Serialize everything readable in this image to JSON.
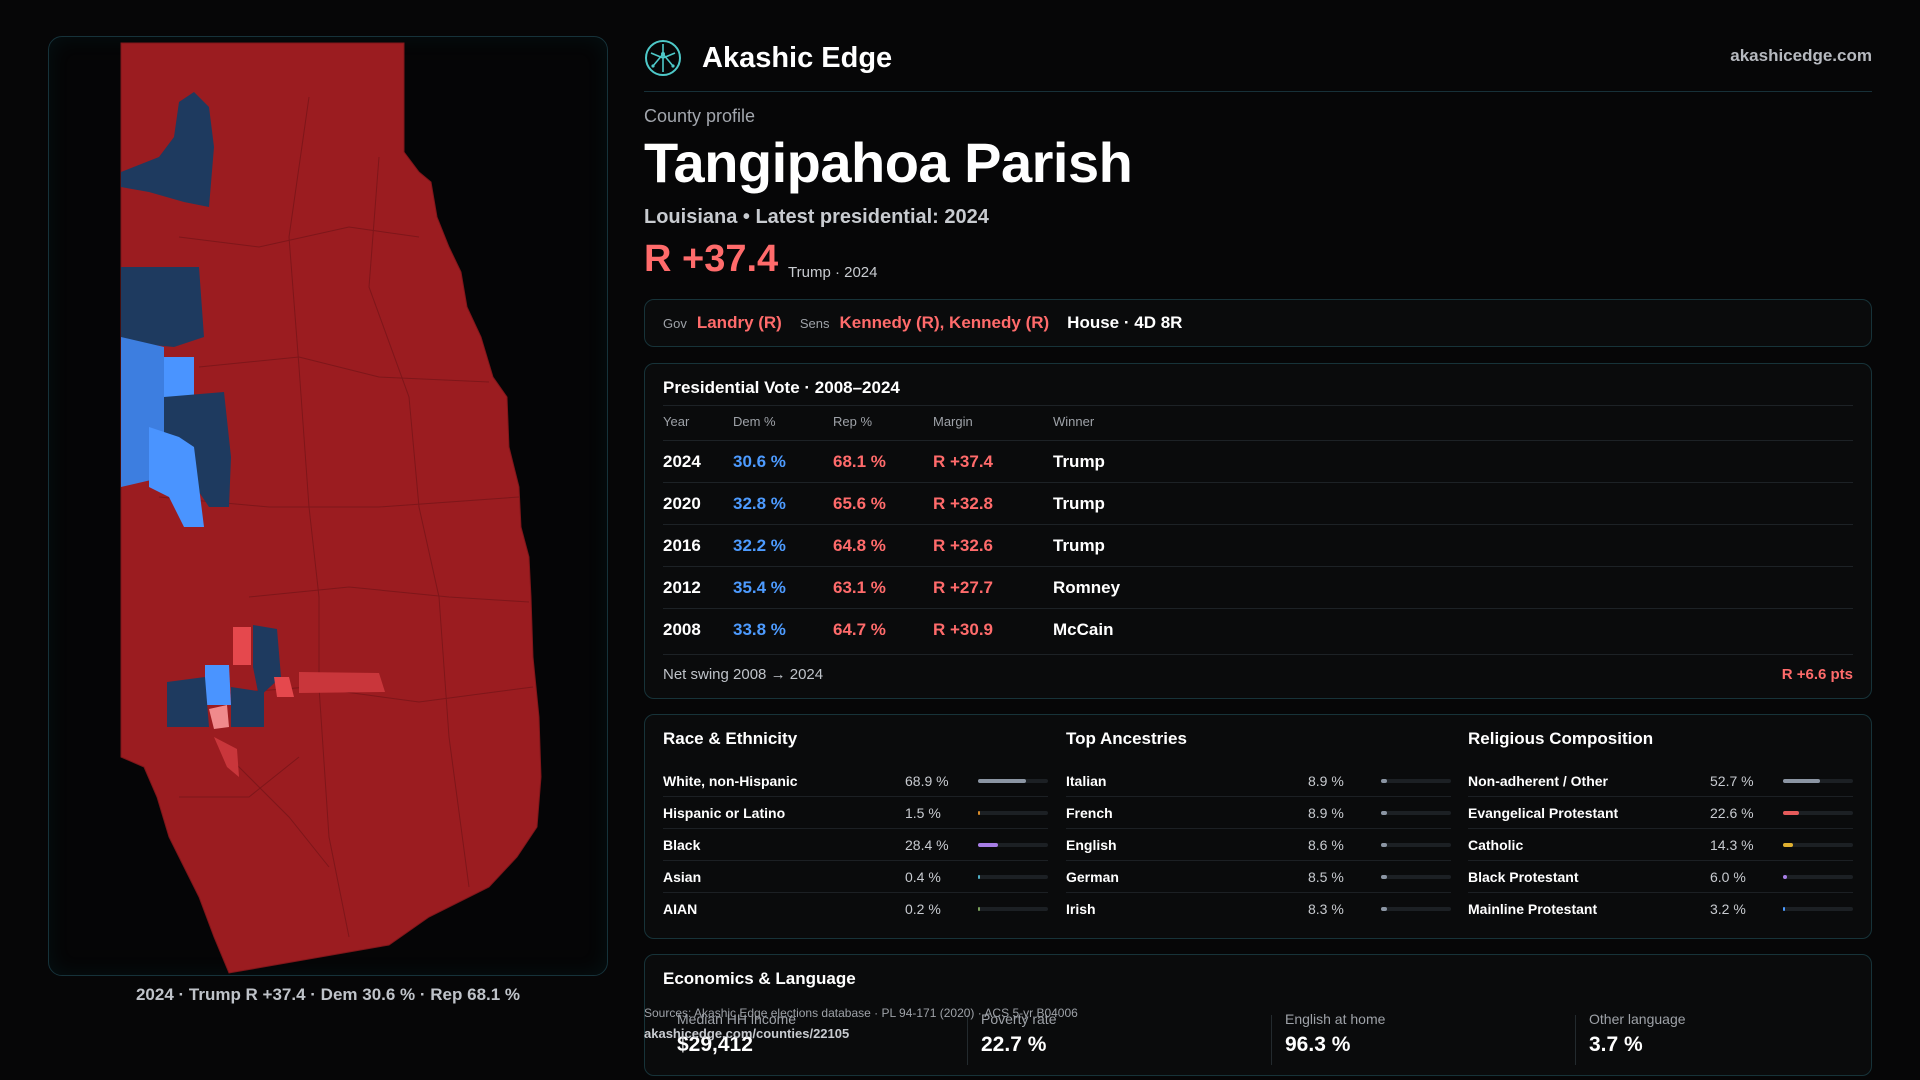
{
  "brand": {
    "name": "Akashic Edge",
    "url": "akashicedge.com",
    "logo_icon": "constellation-logo-icon",
    "accent": "#4ec9c9"
  },
  "profile": {
    "eyebrow": "County profile",
    "title": "Tangipahoa Parish",
    "subtitle": "Louisiana • Latest presidential: 2024",
    "margin": "R +37.4",
    "margin_note": "Trump · 2024"
  },
  "officials": {
    "gov_label": "Gov",
    "gov_value": "Landry (R)",
    "sens_label": "Sens",
    "sens_value": "Kennedy (R), Kennedy (R)",
    "house": "House · 4D 8R"
  },
  "pres": {
    "title": "Presidential Vote · 2008–2024",
    "headers": [
      "Year",
      "Dem %",
      "Rep %",
      "Margin",
      "Winner"
    ],
    "rows": [
      {
        "year": "2024",
        "dem": "30.6 %",
        "rep": "68.1 %",
        "margin": "R +37.4",
        "winner": "Trump"
      },
      {
        "year": "2020",
        "dem": "32.8 %",
        "rep": "65.6 %",
        "margin": "R +32.8",
        "winner": "Trump"
      },
      {
        "year": "2016",
        "dem": "32.2 %",
        "rep": "64.8 %",
        "margin": "R +32.6",
        "winner": "Trump"
      },
      {
        "year": "2012",
        "dem": "35.4 %",
        "rep": "63.1 %",
        "margin": "R +27.7",
        "winner": "Romney"
      },
      {
        "year": "2008",
        "dem": "33.8 %",
        "rep": "64.7 %",
        "margin": "R +30.9",
        "winner": "McCain"
      }
    ],
    "net_swing_label": "Net swing 2008 → 2024",
    "net_swing_value": "R +6.6 pts"
  },
  "demographics": [
    {
      "title": "Race & Ethnicity",
      "items": [
        {
          "label": "White, non-Hispanic",
          "value": "68.9 %",
          "pct": 68.9,
          "color": "#8b95a3"
        },
        {
          "label": "Hispanic or Latino",
          "value": "1.5 %",
          "pct": 1.5,
          "color": "#d98c2a"
        },
        {
          "label": "Black",
          "value": "28.4 %",
          "pct": 28.4,
          "color": "#a77ee6"
        },
        {
          "label": "Asian",
          "value": "0.4 %",
          "pct": 0.4,
          "color": "#4fb0c6"
        },
        {
          "label": "AIAN",
          "value": "0.2 %",
          "pct": 0.2,
          "color": "#7aa05a"
        }
      ]
    },
    {
      "title": "Top Ancestries",
      "items": [
        {
          "label": "Italian",
          "value": "8.9 %",
          "pct": 8.9,
          "color": "#8b95a3"
        },
        {
          "label": "French",
          "value": "8.9 %",
          "pct": 8.9,
          "color": "#8b95a3"
        },
        {
          "label": "English",
          "value": "8.6 %",
          "pct": 8.6,
          "color": "#8b95a3"
        },
        {
          "label": "German",
          "value": "8.5 %",
          "pct": 8.5,
          "color": "#8b95a3"
        },
        {
          "label": "Irish",
          "value": "8.3 %",
          "pct": 8.3,
          "color": "#8b95a3"
        }
      ]
    },
    {
      "title": "Religious Composition",
      "items": [
        {
          "label": "Non-adherent / Other",
          "value": "52.7 %",
          "pct": 52.7,
          "color": "#8b95a3"
        },
        {
          "label": "Evangelical Protestant",
          "value": "22.6 %",
          "pct": 22.6,
          "color": "#e55a5a"
        },
        {
          "label": "Catholic",
          "value": "14.3 %",
          "pct": 14.3,
          "color": "#e0b030"
        },
        {
          "label": "Black Protestant",
          "value": "6.0 %",
          "pct": 6.0,
          "color": "#a77ee6"
        },
        {
          "label": "Mainline Protestant",
          "value": "3.2 %",
          "pct": 3.2,
          "color": "#4d9bff"
        }
      ]
    }
  ],
  "economics": {
    "title": "Economics & Language",
    "items": [
      {
        "label": "Median HH income",
        "value": "$29,412"
      },
      {
        "label": "Poverty rate",
        "value": "22.7 %"
      },
      {
        "label": "English at home",
        "value": "96.3 %"
      },
      {
        "label": "Other language",
        "value": "3.7 %"
      }
    ]
  },
  "sources": {
    "text": "Sources: Akashic Edge elections database · PL 94-171 (2020) · ACS 5-yr B04006",
    "url": "akashicedge.com/counties/22105"
  },
  "map": {
    "caption": "2024 · Trump R +37.4 · Dem 30.6 % · Rep 68.1 %",
    "colors": {
      "strong_r": "#9b1c20",
      "light_r": "#e5484d",
      "pale_r": "#f08a8c",
      "strong_d": "#1e3a5f",
      "mid_d": "#3d7ee0",
      "light_d": "#4a94ff"
    }
  }
}
